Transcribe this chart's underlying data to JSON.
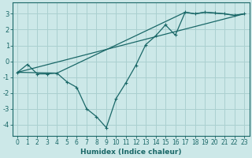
{
  "xlabel": "Humidex (Indice chaleur)",
  "background_color": "#cce8e8",
  "grid_color": "#aad0d0",
  "line_color": "#1a6868",
  "xlim": [
    -0.5,
    23.5
  ],
  "ylim": [
    -4.7,
    3.7
  ],
  "xticks": [
    0,
    1,
    2,
    3,
    4,
    5,
    6,
    7,
    8,
    9,
    10,
    11,
    12,
    13,
    14,
    15,
    16,
    17,
    18,
    19,
    20,
    21,
    22,
    23
  ],
  "yticks": [
    -4,
    -3,
    -2,
    -1,
    0,
    1,
    2,
    3
  ],
  "line1_x": [
    0,
    1,
    2,
    3,
    4,
    5,
    6,
    7,
    8,
    9,
    10,
    11,
    12,
    13,
    14,
    15,
    16,
    17,
    18,
    19,
    20,
    21,
    22,
    23
  ],
  "line1_y": [
    -0.7,
    -0.2,
    -0.8,
    -0.8,
    -0.75,
    -1.3,
    -1.65,
    -3.0,
    -3.5,
    -4.2,
    -2.35,
    -1.35,
    -0.25,
    1.05,
    1.6,
    2.3,
    1.65,
    3.1,
    3.0,
    3.1,
    3.05,
    3.0,
    2.9,
    3.0
  ],
  "line2_x": [
    0,
    4,
    17,
    18,
    19,
    20,
    21,
    22,
    23
  ],
  "line2_y": [
    -0.7,
    -0.75,
    3.1,
    3.0,
    3.1,
    3.05,
    3.0,
    2.9,
    3.0
  ],
  "line3_x": [
    0,
    23
  ],
  "line3_y": [
    -0.7,
    3.0
  ],
  "xlabel_fontsize": 6.5,
  "tick_fontsize": 5.5
}
